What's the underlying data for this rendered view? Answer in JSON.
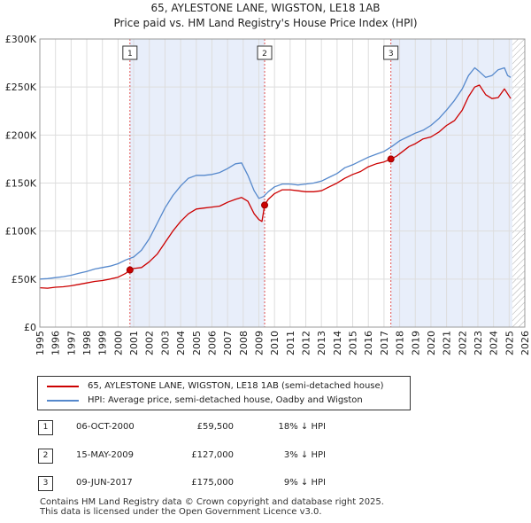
{
  "title_line1": "65, AYLESTONE LANE, WIGSTON, LE18 1AB",
  "title_line2": "Price paid vs. HM Land Registry's House Price Index (HPI)",
  "chart_data": {
    "type": "line",
    "xlim": [
      1995,
      2026
    ],
    "ylim": [
      0,
      300000
    ],
    "y_ticks": [
      0,
      50000,
      100000,
      150000,
      200000,
      250000,
      300000
    ],
    "y_tick_labels": [
      "£0",
      "£50K",
      "£100K",
      "£150K",
      "£200K",
      "£250K",
      "£300K"
    ],
    "x_ticks": [
      1995,
      1996,
      1997,
      1998,
      1999,
      2000,
      2001,
      2002,
      2003,
      2004,
      2005,
      2006,
      2007,
      2008,
      2009,
      2010,
      2011,
      2012,
      2013,
      2014,
      2015,
      2016,
      2017,
      2018,
      2019,
      2020,
      2021,
      2022,
      2023,
      2024,
      2025,
      2026
    ],
    "grid": true,
    "colors": {
      "property": "#cc0000",
      "hpi": "#5588cc",
      "shade": "#e8eefa",
      "marker_line": "#e05050",
      "hatch": "#aaaaaa"
    },
    "shaded_periods": [
      [
        2000.76,
        2009.37
      ],
      [
        2017.44,
        2025.2
      ]
    ],
    "future_from": 2025.2,
    "series": [
      {
        "name": "65, AYLESTONE LANE, WIGSTON, LE18 1AB (semi-detached house)",
        "key": "property",
        "x": [
          1995,
          1995.5,
          1996,
          1996.5,
          1997,
          1997.5,
          1998,
          1998.5,
          1999,
          1999.5,
          2000,
          2000.5,
          2000.76,
          2001,
          2001.5,
          2002,
          2002.5,
          2003,
          2003.5,
          2004,
          2004.5,
          2005,
          2005.5,
          2006,
          2006.5,
          2007,
          2007.5,
          2007.9,
          2008.3,
          2008.7,
          2009,
          2009.2,
          2009.37,
          2009.6,
          2010,
          2010.5,
          2011,
          2011.5,
          2012,
          2012.5,
          2013,
          2013.5,
          2014,
          2014.5,
          2015,
          2015.5,
          2016,
          2016.5,
          2017,
          2017.44,
          2017.8,
          2018.2,
          2018.6,
          2019,
          2019.5,
          2020,
          2020.5,
          2021,
          2021.5,
          2022,
          2022.4,
          2022.8,
          2023.1,
          2023.5,
          2023.9,
          2024.3,
          2024.7,
          2024.9,
          2025.1
        ],
        "y": [
          41000,
          40500,
          41500,
          42000,
          43000,
          44500,
          46000,
          47500,
          48500,
          50000,
          52000,
          56000,
          59500,
          61000,
          62000,
          68000,
          76000,
          88000,
          100000,
          110000,
          118000,
          123000,
          124000,
          125000,
          126000,
          130000,
          133000,
          135000,
          131000,
          118000,
          112000,
          110000,
          127000,
          133000,
          139000,
          143000,
          143000,
          142000,
          141000,
          141000,
          142000,
          146000,
          150000,
          155000,
          159000,
          162000,
          167000,
          170000,
          172000,
          175000,
          178000,
          183000,
          188000,
          191000,
          196000,
          198000,
          203000,
          210000,
          215000,
          226000,
          240000,
          250000,
          252000,
          242000,
          238000,
          239000,
          248000,
          243000,
          238000
        ]
      },
      {
        "name": "HPI: Average price, semi-detached house, Oadby and Wigston",
        "key": "hpi",
        "x": [
          1995,
          1995.5,
          1996,
          1996.5,
          1997,
          1997.5,
          1998,
          1998.5,
          1999,
          1999.5,
          2000,
          2000.5,
          2001,
          2001.5,
          2002,
          2002.5,
          2003,
          2003.5,
          2004,
          2004.5,
          2005,
          2005.5,
          2006,
          2006.5,
          2007,
          2007.5,
          2007.9,
          2008.3,
          2008.7,
          2009,
          2009.3,
          2009.6,
          2010,
          2010.5,
          2011,
          2011.5,
          2012,
          2012.5,
          2013,
          2013.5,
          2014,
          2014.5,
          2015,
          2015.5,
          2016,
          2016.5,
          2017,
          2017.5,
          2018,
          2018.5,
          2019,
          2019.5,
          2020,
          2020.5,
          2021,
          2021.5,
          2022,
          2022.4,
          2022.8,
          2023.1,
          2023.5,
          2023.9,
          2024.3,
          2024.7,
          2024.9,
          2025.1
        ],
        "y": [
          50000,
          50500,
          51500,
          52500,
          54000,
          56000,
          58000,
          60500,
          62000,
          63500,
          66000,
          70000,
          73000,
          80000,
          92000,
          108000,
          124000,
          137000,
          147000,
          155000,
          158000,
          158000,
          159000,
          161000,
          165000,
          170000,
          171000,
          158000,
          142000,
          134000,
          136000,
          141000,
          146000,
          149000,
          149000,
          148000,
          149000,
          150000,
          152000,
          156000,
          160000,
          166000,
          169000,
          173000,
          177000,
          180000,
          183000,
          188000,
          194000,
          198000,
          202000,
          205000,
          210000,
          217000,
          226000,
          236000,
          248000,
          262000,
          270000,
          266000,
          260000,
          262000,
          268000,
          270000,
          262000,
          260000
        ]
      }
    ],
    "sales": [
      {
        "num": "1",
        "x": 2000.76,
        "y": 59500,
        "date": "06-OCT-2000",
        "price": "£59,500",
        "hpi": "18% ↓ HPI"
      },
      {
        "num": "2",
        "x": 2009.37,
        "y": 127000,
        "date": "15-MAY-2009",
        "price": "£127,000",
        "hpi": "3% ↓ HPI"
      },
      {
        "num": "3",
        "x": 2017.44,
        "y": 175000,
        "date": "09-JUN-2017",
        "price": "£175,000",
        "hpi": "9% ↓ HPI"
      }
    ]
  },
  "legend": {
    "property_label": "65, AYLESTONE LANE, WIGSTON, LE18 1AB (semi-detached house)",
    "hpi_label": "HPI: Average price, semi-detached house, Oadby and Wigston"
  },
  "footer": {
    "line1": "Contains HM Land Registry data © Crown copyright and database right 2025.",
    "line2": "This data is licensed under the Open Government Licence v3.0."
  }
}
